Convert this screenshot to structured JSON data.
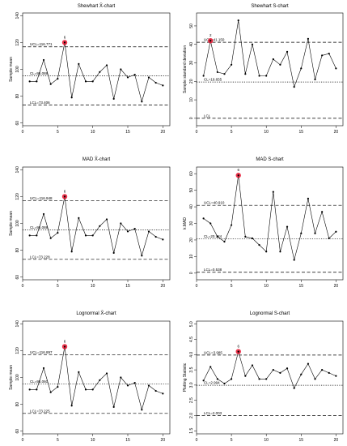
{
  "chart_data": [
    {
      "type": "line",
      "title": "Shewhart X̄-chart",
      "ylabel": "Sample mean",
      "xlabel": "",
      "xlim": [
        0,
        21
      ],
      "ylim": [
        58,
        142
      ],
      "xticks": [
        0,
        5,
        10,
        15,
        20
      ],
      "yticks": [
        60,
        80,
        100,
        120,
        140
      ],
      "x": [
        1,
        2,
        3,
        4,
        5,
        6,
        7,
        8,
        9,
        10,
        11,
        12,
        13,
        14,
        15,
        16,
        17,
        18,
        19,
        20
      ],
      "series": [
        {
          "values": [
            91,
            91,
            107,
            89,
            93,
            120,
            79,
            104,
            91,
            91,
            98,
            103,
            78,
            100,
            94,
            96,
            76,
            94,
            90,
            88
          ]
        }
      ],
      "limits": [
        {
          "label": "UCL=116.771",
          "value": 116.771,
          "style": "dashed"
        },
        {
          "label": "CL=95.088",
          "value": 95.088,
          "style": "dotted"
        },
        {
          "label": "LCL=73.406",
          "value": 73.406,
          "style": "dashed"
        }
      ],
      "out_of_control": [
        {
          "x": 6,
          "label": "6"
        }
      ]
    },
    {
      "type": "line",
      "title": "Shewhart S-chart",
      "ylabel": "Sample standard deviation",
      "xlabel": "",
      "xlim": [
        0,
        21
      ],
      "ylim": [
        -4,
        57
      ],
      "xticks": [
        0,
        5,
        10,
        15,
        20
      ],
      "yticks": [
        0,
        10,
        20,
        30,
        40,
        50
      ],
      "x": [
        1,
        2,
        3,
        4,
        5,
        6,
        7,
        8,
        9,
        10,
        11,
        12,
        13,
        14,
        15,
        16,
        17,
        18,
        19,
        20
      ],
      "series": [
        {
          "values": [
            23,
            42,
            25,
            24,
            29,
            53,
            24,
            40,
            23,
            23,
            32,
            29,
            36,
            17,
            27,
            43,
            21,
            34,
            35,
            27
          ]
        }
      ],
      "limits": [
        {
          "label": "UCL=41.150",
          "value": 41.15,
          "style": "dashed"
        },
        {
          "label": "CL=19.655",
          "value": 19.655,
          "style": "dotted"
        },
        {
          "label": "LCL",
          "value": 0,
          "style": "dashed"
        }
      ],
      "out_of_control": [
        {
          "x": 2,
          "label": "2"
        }
      ]
    },
    {
      "type": "line",
      "title": "MAD X̄-chart",
      "ylabel": "Sample mean",
      "xlabel": "",
      "xlim": [
        0,
        21
      ],
      "ylim": [
        58,
        142
      ],
      "xticks": [
        0,
        5,
        10,
        15,
        20
      ],
      "yticks": [
        60,
        80,
        100,
        120,
        140
      ],
      "x": [
        1,
        2,
        3,
        4,
        5,
        6,
        7,
        8,
        9,
        10,
        11,
        12,
        13,
        14,
        15,
        16,
        17,
        18,
        19,
        20
      ],
      "series": [
        {
          "values": [
            91,
            91,
            107,
            89,
            93,
            120,
            79,
            104,
            91,
            91,
            98,
            103,
            78,
            100,
            94,
            96,
            76,
            94,
            90,
            88
          ]
        }
      ],
      "limits": [
        {
          "label": "UCL=116.948",
          "value": 116.948,
          "style": "dashed"
        },
        {
          "label": "CL=95.088",
          "value": 95.088,
          "style": "dotted"
        },
        {
          "label": "LCL=73.228",
          "value": 73.228,
          "style": "dashed"
        }
      ],
      "out_of_control": [
        {
          "x": 6,
          "label": "6"
        }
      ]
    },
    {
      "type": "line",
      "title": "MAD S-chart",
      "ylabel": "k.MAD",
      "xlabel": "",
      "xlim": [
        0,
        21
      ],
      "ylim": [
        -4,
        64
      ],
      "xticks": [
        0,
        5,
        10,
        15,
        20
      ],
      "yticks": [
        0,
        10,
        20,
        30,
        40,
        50,
        60
      ],
      "x": [
        1,
        2,
        3,
        4,
        5,
        6,
        7,
        8,
        9,
        10,
        11,
        12,
        13,
        14,
        15,
        16,
        17,
        18,
        19,
        20
      ],
      "series": [
        {
          "values": [
            33,
            30,
            22,
            19,
            29,
            59,
            22,
            21,
            17,
            13,
            49,
            13,
            28,
            8,
            24,
            45,
            24,
            37,
            21,
            25
          ]
        }
      ],
      "limits": [
        {
          "label": "UCL=40.910",
          "value": 40.91,
          "style": "dashed"
        },
        {
          "label": "CL=20.724",
          "value": 20.724,
          "style": "dotted"
        },
        {
          "label": "LCL=0.538",
          "value": 0.538,
          "style": "dashed"
        }
      ],
      "out_of_control": [
        {
          "x": 6,
          "label": "6"
        }
      ]
    },
    {
      "type": "line",
      "title": "Lognormal X̄-chart",
      "ylabel": "Sample mean",
      "xlabel": "",
      "xlim": [
        0,
        21
      ],
      "ylim": [
        58,
        142
      ],
      "xticks": [
        0,
        5,
        10,
        15,
        20
      ],
      "yticks": [
        60,
        80,
        100,
        120,
        140
      ],
      "x": [
        1,
        2,
        3,
        4,
        5,
        6,
        7,
        8,
        9,
        10,
        11,
        12,
        13,
        14,
        15,
        16,
        17,
        18,
        19,
        20
      ],
      "series": [
        {
          "values": [
            91,
            91,
            107,
            89,
            93,
            123,
            79,
            104,
            91,
            91,
            98,
            103,
            78,
            100,
            94,
            96,
            76,
            94,
            90,
            88
          ]
        }
      ],
      "limits": [
        {
          "label": "UCL=116.897",
          "value": 116.897,
          "style": "dashed"
        },
        {
          "label": "CL=95.060",
          "value": 95.06,
          "style": "dotted"
        },
        {
          "label": "LCL=73.225",
          "value": 73.225,
          "style": "dashed"
        }
      ],
      "out_of_control": [
        {
          "x": 6,
          "label": "6"
        }
      ]
    },
    {
      "type": "line",
      "title": "Lognormal S-chart",
      "ylabel": "Plotting Statistic",
      "xlabel": "",
      "xlim": [
        0,
        21
      ],
      "ylim": [
        1.4,
        5.1
      ],
      "xticks": [
        0,
        5,
        10,
        15,
        20
      ],
      "yticks": [
        1.5,
        2.0,
        2.5,
        3.0,
        3.5,
        4.0,
        4.5,
        5.0
      ],
      "x": [
        1,
        2,
        3,
        4,
        5,
        6,
        7,
        8,
        9,
        10,
        11,
        12,
        13,
        14,
        15,
        16,
        17,
        18,
        19,
        20
      ],
      "series": [
        {
          "values": [
            3.15,
            3.6,
            3.2,
            3.05,
            3.2,
            4.1,
            3.3,
            3.65,
            3.2,
            3.2,
            3.5,
            3.4,
            3.55,
            2.9,
            3.35,
            3.7,
            3.2,
            3.5,
            3.4,
            3.3
          ]
        }
      ],
      "limits": [
        {
          "label": "UCL=3.985",
          "value": 3.985,
          "style": "dashed"
        },
        {
          "label": "CL=2.994",
          "value": 2.994,
          "style": "dotted"
        },
        {
          "label": "LCL=2.003",
          "value": 2.003,
          "style": "dashed"
        }
      ],
      "out_of_control": [
        {
          "x": 6,
          "label": "6"
        }
      ]
    }
  ],
  "colors": {
    "line": "#000000",
    "highlight": "#e8112d"
  }
}
